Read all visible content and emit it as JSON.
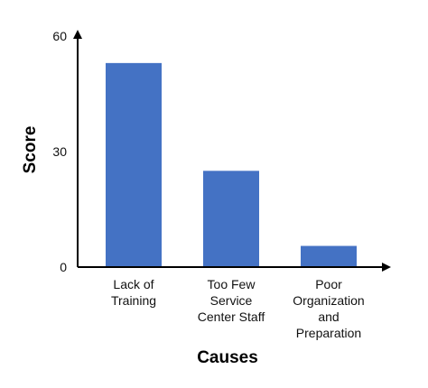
{
  "chart_data": {
    "type": "bar",
    "categories": [
      [
        "Lack of",
        "Training"
      ],
      [
        "Too Few",
        "Service",
        "Center Staff"
      ],
      [
        "Poor",
        "Organization",
        "and",
        "Preparation"
      ]
    ],
    "values": [
      53,
      25,
      5.5
    ],
    "xlabel": "Causes",
    "ylabel": "Score",
    "ylim": [
      0,
      60
    ],
    "yticks": [
      0,
      30,
      60
    ],
    "grid": false,
    "legend": "none",
    "bar_color": "#4472c4",
    "axis_color": "#000000"
  }
}
